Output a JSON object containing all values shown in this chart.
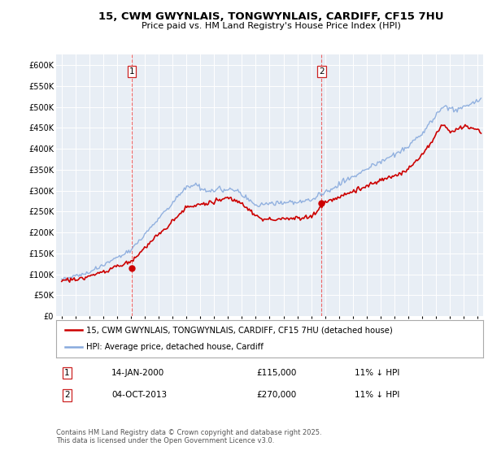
{
  "title": "15, CWM GWYNLAIS, TONGWYNLAIS, CARDIFF, CF15 7HU",
  "subtitle": "Price paid vs. HM Land Registry's House Price Index (HPI)",
  "ytick_values": [
    0,
    50000,
    100000,
    150000,
    200000,
    250000,
    300000,
    350000,
    400000,
    450000,
    500000,
    550000,
    600000
  ],
  "ylim": [
    0,
    625000
  ],
  "xlim_left": 1994.6,
  "xlim_right": 2025.4,
  "legend_entry1": "15, CWM GWYNLAIS, TONGWYNLAIS, CARDIFF, CF15 7HU (detached house)",
  "legend_entry2": "HPI: Average price, detached house, Cardiff",
  "marker1_date": "14-JAN-2000",
  "marker1_price": "£115,000",
  "marker1_hpi": "11% ↓ HPI",
  "marker1_x": 2000.04,
  "marker1_y": 115000,
  "marker2_date": "04-OCT-2013",
  "marker2_price": "£270,000",
  "marker2_hpi": "11% ↓ HPI",
  "marker2_x": 2013.75,
  "marker2_y": 270000,
  "footer": "Contains HM Land Registry data © Crown copyright and database right 2025.\nThis data is licensed under the Open Government Licence v3.0.",
  "line_color_price": "#cc0000",
  "line_color_hpi": "#88aadd",
  "marker_vline_color": "#ee6666",
  "bg_color": "#ffffff",
  "plot_bg_color": "#e8eef5",
  "grid_color": "#ffffff",
  "title_fontsize": 9.5,
  "subtitle_fontsize": 8
}
